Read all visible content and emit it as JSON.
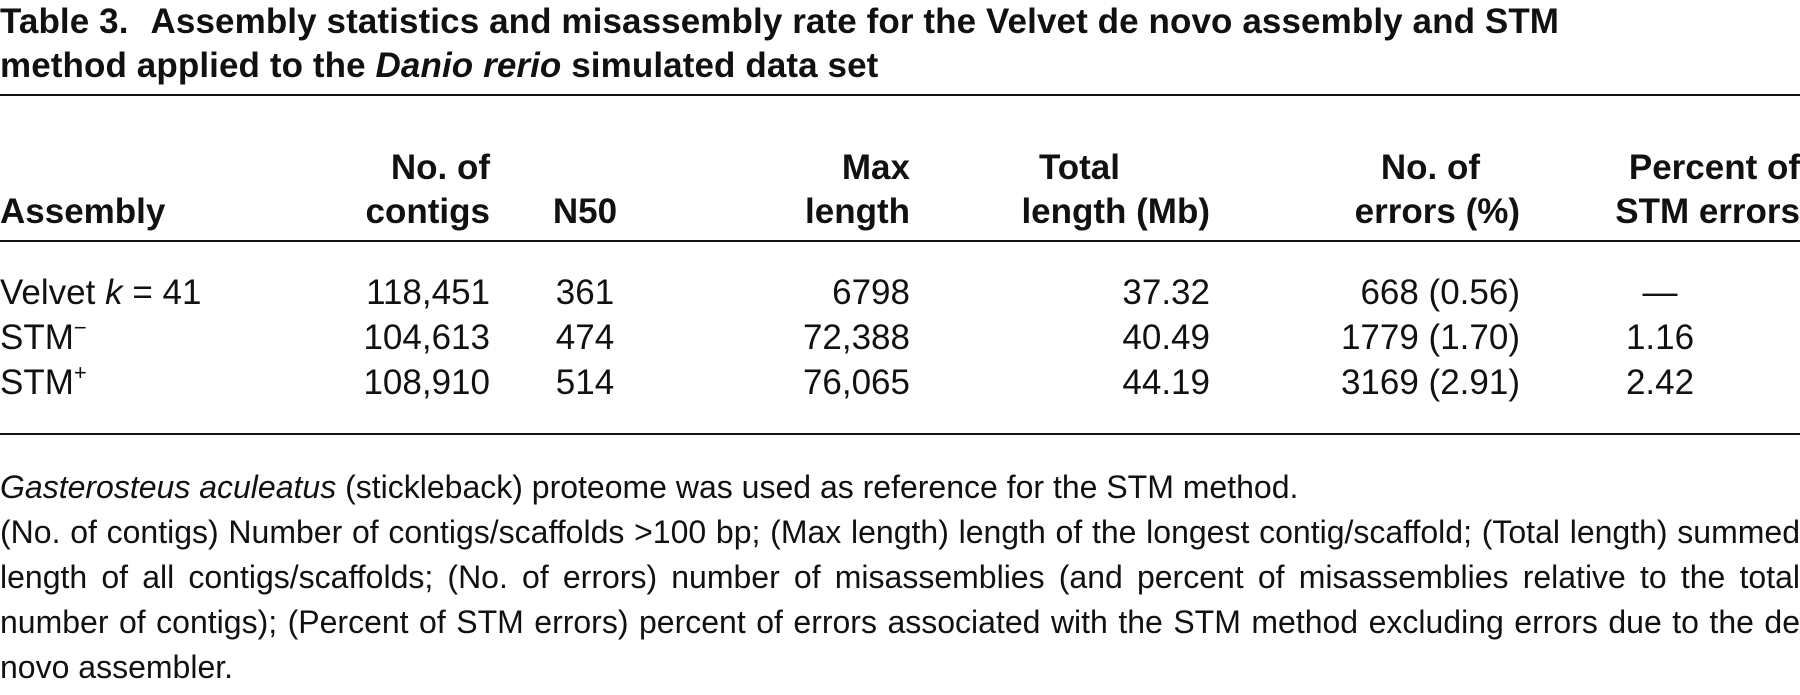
{
  "caption": {
    "label": "Table 3.",
    "text_line1": "Assembly statistics and misassembly rate for the Velvet de novo assembly and STM",
    "text_line2_pre": "method applied to the",
    "text_line2_italic": "Danio rerio",
    "text_line2_post": "simulated data set"
  },
  "table": {
    "headers": {
      "assembly": "Assembly",
      "contigs_l1": "No. of",
      "contigs_l2": "contigs",
      "n50": "N50",
      "maxlen_l1": "Max",
      "maxlen_l2": "length",
      "total_l1": "Total",
      "total_l2": "length (Mb)",
      "errors_l1": "No. of",
      "errors_l2": "errors (%)",
      "stm_l1": "Percent of",
      "stm_l2": "STM errors"
    },
    "rows": [
      {
        "assembly_prefix": "Velvet",
        "assembly_italic": "k",
        "assembly_suffix": "= 41",
        "assembly_sup": "",
        "contigs": "118,451",
        "n50": "361",
        "max_length": "6798",
        "total_length": "37.32",
        "errors": "668 (0.56)",
        "stm_errors": "—"
      },
      {
        "assembly_prefix": "STM",
        "assembly_italic": "",
        "assembly_suffix": "",
        "assembly_sup": "−",
        "contigs": "104,613",
        "n50": "474",
        "max_length": "72,388",
        "total_length": "40.49",
        "errors": "1779 (1.70)",
        "stm_errors": "1.16"
      },
      {
        "assembly_prefix": "STM",
        "assembly_italic": "",
        "assembly_suffix": "",
        "assembly_sup": "+",
        "contigs": "108,910",
        "n50": "514",
        "max_length": "76,065",
        "total_length": "44.19",
        "errors": "3169 (2.91)",
        "stm_errors": "2.42"
      }
    ]
  },
  "footnotes": {
    "fn1_italic": "Gasterosteus aculeatus",
    "fn1_rest": "(stickleback) proteome was used as reference for the STM method.",
    "fn2": "(No. of contigs) Number of contigs/scaffolds >100 bp; (Max length) length of the longest contig/scaffold; (Total length) summed length of all contigs/scaffolds; (No. of errors) number of misassemblies (and percent of misassemblies relative to the total number of contigs); (Percent of STM errors) percent of errors associated with the STM method excluding errors due to the de novo assembler."
  }
}
